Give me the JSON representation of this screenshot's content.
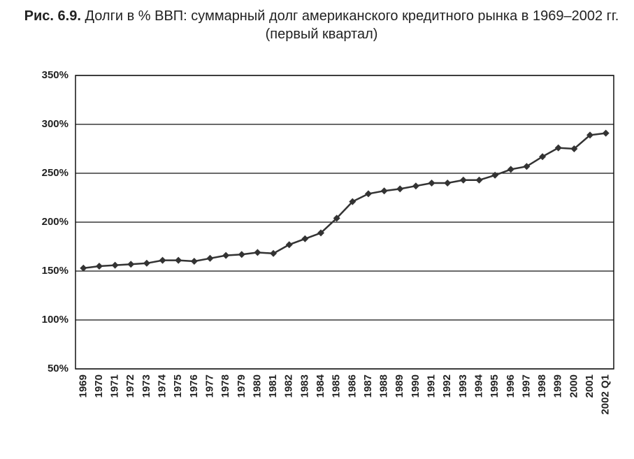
{
  "chart_data": {
    "type": "line",
    "figure_label": "Рис. 6.9.",
    "title": "Долги в % ВВП: суммарный долг американского кредитного рынка в 1969–2002 гг. (первый квартал)",
    "categories": [
      "1969",
      "1970",
      "1971",
      "1972",
      "1973",
      "1974",
      "1975",
      "1976",
      "1977",
      "1978",
      "1979",
      "1980",
      "1981",
      "1982",
      "1983",
      "1984",
      "1985",
      "1986",
      "1987",
      "1988",
      "1989",
      "1990",
      "1991",
      "1992",
      "1993",
      "1994",
      "1995",
      "1996",
      "1997",
      "1998",
      "1999",
      "2000",
      "2001",
      "2002 Q1"
    ],
    "values": [
      153,
      155,
      156,
      157,
      158,
      161,
      161,
      160,
      163,
      166,
      167,
      169,
      168,
      177,
      183,
      189,
      204,
      221,
      229,
      232,
      234,
      237,
      240,
      240,
      243,
      243,
      248,
      254,
      257,
      267,
      276,
      275,
      289,
      291
    ],
    "color": "#333333",
    "ylim": [
      50,
      350
    ],
    "yticks": [
      {
        "value": 50,
        "label": "50%"
      },
      {
        "value": 100,
        "label": "100%"
      },
      {
        "value": 150,
        "label": "150%"
      },
      {
        "value": 200,
        "label": "200%"
      },
      {
        "value": 250,
        "label": "250%"
      },
      {
        "value": 300,
        "label": "300%"
      },
      {
        "value": 350,
        "label": "350%"
      }
    ],
    "grid": true
  }
}
